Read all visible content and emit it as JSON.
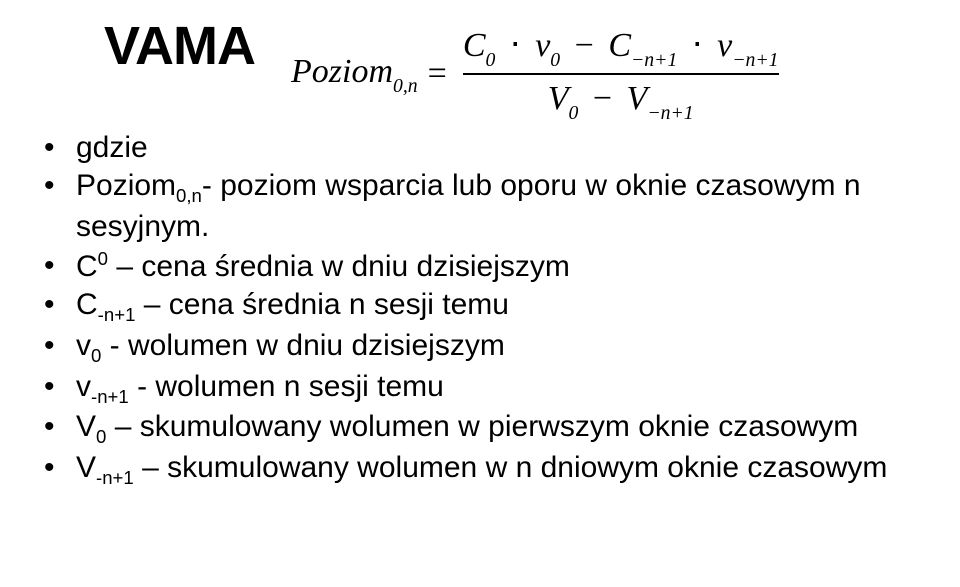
{
  "title": "VAMA",
  "formula": {
    "lhs_var": "Poziom",
    "lhs_sub": "0,n",
    "num_terms": {
      "C0": {
        "v": "C",
        "s": "0"
      },
      "v0": {
        "v": "v",
        "s": "0"
      },
      "Cn1": {
        "v": "C",
        "s": "−n+1"
      },
      "vn1": {
        "v": "v",
        "s": "−n+1"
      }
    },
    "den_terms": {
      "V0": {
        "v": "V",
        "s": "0"
      },
      "Vn1": {
        "v": "V",
        "s": "−n+1"
      }
    }
  },
  "bullets": {
    "b1": "gdzie",
    "b2": {
      "pre": "Poziom",
      "sub": "0,n",
      "rest": "- poziom wsparcia lub oporu w oknie czasowym n sesyjnym."
    },
    "b3": {
      "pre": "C",
      "sup": "0",
      "rest": " – cena średnia w dniu dzisiejszym"
    },
    "b4": {
      "pre": "C",
      "sub": "-n+1",
      "rest": " – cena średnia n sesji temu"
    },
    "b5": {
      "pre": "v",
      "sub": "0",
      "rest": "  - wolumen w dniu dzisiejszym"
    },
    "b6": {
      "pre": "v",
      "sub": "-n+1",
      "rest": "  - wolumen  n sesji temu"
    },
    "b7": {
      "pre": "V",
      "sub": "0",
      "rest": " – skumulowany wolumen w pierwszym oknie czasowym"
    },
    "b8": {
      "pre": "V",
      "sub": "-n+1",
      "rest": " – skumulowany wolumen w n dniowym oknie czasowym"
    }
  }
}
